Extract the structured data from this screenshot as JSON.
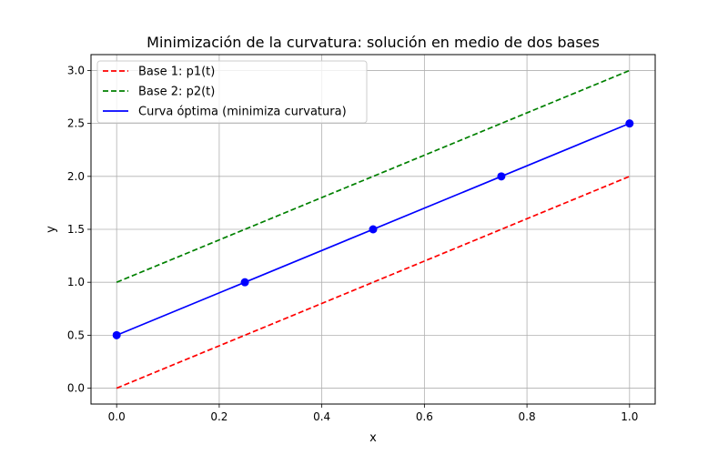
{
  "chart_data": {
    "type": "line",
    "title": "Minimización de la curvatura: solución en medio de dos bases",
    "xlabel": "x",
    "ylabel": "y",
    "xlim": [
      -0.05,
      1.05
    ],
    "ylim": [
      -0.15,
      3.15
    ],
    "xticks": [
      0.0,
      0.2,
      0.4,
      0.6,
      0.8,
      1.0
    ],
    "xtick_labels": [
      "0.0",
      "0.2",
      "0.4",
      "0.6",
      "0.8",
      "1.0"
    ],
    "yticks": [
      0.0,
      0.5,
      1.0,
      1.5,
      2.0,
      2.5,
      3.0
    ],
    "ytick_labels": [
      "0.0",
      "0.5",
      "1.0",
      "1.5",
      "2.0",
      "2.5",
      "3.0"
    ],
    "grid": true,
    "legend_position": "top-left",
    "series": [
      {
        "name": "Base 1: p1(t)",
        "color": "#ff0000",
        "style": "dashed",
        "x": [
          0.0,
          1.0
        ],
        "y": [
          0.0,
          2.0
        ]
      },
      {
        "name": "Base 2: p2(t)",
        "color": "#008000",
        "style": "dashed",
        "x": [
          0.0,
          1.0
        ],
        "y": [
          1.0,
          3.0
        ]
      },
      {
        "name": "Curva óptima (minimiza curvatura)",
        "color": "#0000ff",
        "style": "solid",
        "x": [
          0.0,
          1.0
        ],
        "y": [
          0.5,
          2.5
        ]
      }
    ],
    "points": {
      "color": "#0000ff",
      "x": [
        0.0,
        0.25,
        0.5,
        0.75,
        1.0
      ],
      "y": [
        0.5,
        1.0,
        1.5,
        2.0,
        2.5
      ]
    }
  }
}
